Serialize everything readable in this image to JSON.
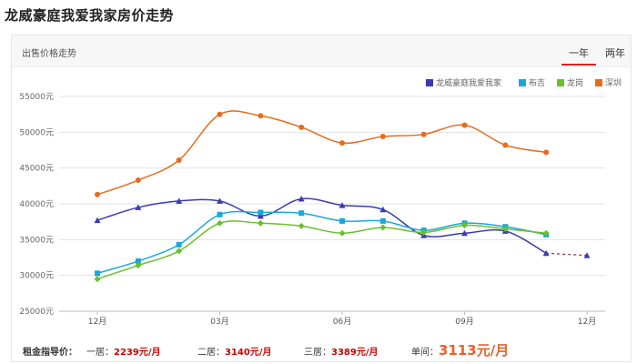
{
  "page": {
    "title": "龙威豪庭我爱我家房价走势"
  },
  "panel": {
    "subtitle": "出售价格走势",
    "tabs": [
      {
        "label": "一年",
        "active": true
      },
      {
        "label": "两年",
        "active": false
      }
    ]
  },
  "footer": {
    "rent_label": "租金指导价：",
    "one_room_label": "一居：",
    "one_room_value": "2239元/月",
    "two_room_label": "二居：",
    "two_room_value": "3140元/月",
    "three_room_label": "三居：",
    "three_room_value": "3389元/月",
    "unit_price_label": "单间：",
    "unit_price_value": "3113元/月"
  },
  "chart_data": {
    "type": "line",
    "title": "",
    "xlabel": "",
    "ylabel": "",
    "ylim": [
      25000,
      55000
    ],
    "yticks": [
      "25000元",
      "30000元",
      "35000元",
      "40000元",
      "45000元",
      "50000元",
      "55000元"
    ],
    "ytick_values": [
      25000,
      30000,
      35000,
      40000,
      45000,
      50000,
      55000
    ],
    "xticks": [
      {
        "label": "12月",
        "index": 0
      },
      {
        "label": "03月",
        "index": 3
      },
      {
        "label": "06月",
        "index": 6
      },
      {
        "label": "09月",
        "index": 9
      },
      {
        "label": "12月",
        "index": 12
      }
    ],
    "grid": true,
    "legend_position": "top-right",
    "series": [
      {
        "name": "龙威豪庭我爱我家",
        "color": "#3b3bb0",
        "marker": "triangle",
        "values": [
          37700,
          39500,
          40400,
          40400,
          38300,
          40700,
          39800,
          39200,
          35600,
          35900,
          36200,
          33100,
          32800
        ],
        "dashed_from": 11
      },
      {
        "name": "布吉",
        "color": "#1aa8d8",
        "marker": "square",
        "values": [
          30300,
          32000,
          34300,
          38500,
          38800,
          38700,
          37600,
          37600,
          36300,
          37300,
          36800,
          35700
        ]
      },
      {
        "name": "龙岗",
        "color": "#6ac02a",
        "marker": "diamond",
        "values": [
          29500,
          31400,
          33400,
          37300,
          37300,
          36900,
          35900,
          36700,
          36000,
          37000,
          36500,
          35900
        ]
      },
      {
        "name": "深圳",
        "color": "#e66c1a",
        "marker": "circle",
        "values": [
          41300,
          43300,
          46100,
          52500,
          52300,
          50700,
          48500,
          49400,
          49700,
          51000,
          48200,
          47200
        ]
      }
    ]
  }
}
